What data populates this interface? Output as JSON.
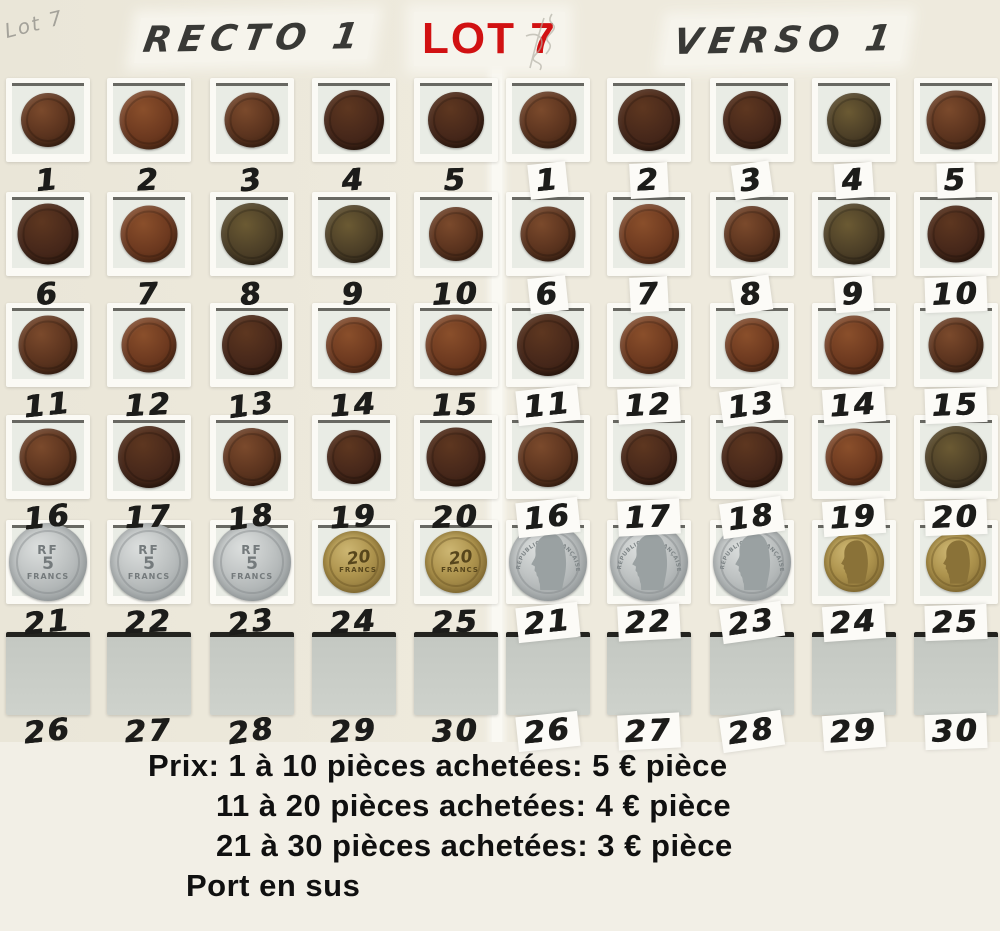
{
  "header": {
    "pencil_note": "Lot 7",
    "recto_label": "RECTO 1",
    "lot_label": "LOT 7",
    "verso_label": "VERSO 1"
  },
  "colors": {
    "lot_red": "#d11112",
    "paper": "#ece8db",
    "marker_ink": "#1c1c1a",
    "copper_coin": "#5f3620",
    "silver_coin": "#b9bdbf",
    "gold_coin": "#ad934d"
  },
  "coins": {
    "silver_recto": {
      "top": "RF",
      "value": "5",
      "unit": "FRANCS"
    },
    "gold_recto": {
      "value": "20",
      "unit": "FRANCS"
    },
    "verso_inscription": "REPUBLIQUE FRANÇAISE"
  },
  "grid": {
    "numbers": [
      "1",
      "2",
      "3",
      "4",
      "5",
      "6",
      "7",
      "8",
      "9",
      "10",
      "11",
      "12",
      "13",
      "14",
      "15",
      "16",
      "17",
      "18",
      "19",
      "20",
      "21",
      "22",
      "23",
      "24",
      "25",
      "26",
      "27",
      "28",
      "29",
      "30"
    ],
    "halves": [
      {
        "name": "recto",
        "rows": [
          [
            "copper",
            "copper-red",
            "copper",
            "copper-dark",
            "copper-dark"
          ],
          [
            "copper-dark",
            "copper-red",
            "copper-green",
            "copper-green",
            "copper"
          ],
          [
            "copper",
            "copper-red",
            "copper-dark",
            "copper-red",
            "copper-red"
          ],
          [
            "copper",
            "copper-dark",
            "copper",
            "copper-dark",
            "copper-dark"
          ],
          [
            "silver",
            "silver",
            "silver",
            "gold",
            "gold"
          ],
          [
            "empty",
            "empty",
            "empty",
            "empty",
            "empty"
          ]
        ]
      },
      {
        "name": "verso",
        "rows": [
          [
            "copper",
            "copper-dark",
            "copper-dark",
            "copper-green",
            "copper"
          ],
          [
            "copper",
            "copper-red",
            "copper",
            "copper-green",
            "copper-dark"
          ],
          [
            "copper-dark",
            "copper-red",
            "copper-red",
            "copper-red",
            "copper"
          ],
          [
            "copper",
            "copper-dark",
            "copper-dark",
            "copper-red",
            "copper-green"
          ],
          [
            "silver-head",
            "silver-head",
            "silver-head",
            "gold-head",
            "gold-head"
          ],
          [
            "empty",
            "empty",
            "empty",
            "empty",
            "empty"
          ]
        ]
      }
    ]
  },
  "pricing": {
    "lines": [
      "Prix: 1 à 10 pièces achetées: 5 € pièce",
      "11 à 20 pièces achetées: 4 € pièce",
      "21 à 30 pièces achetées: 3 € pièce",
      "Port en sus"
    ]
  }
}
